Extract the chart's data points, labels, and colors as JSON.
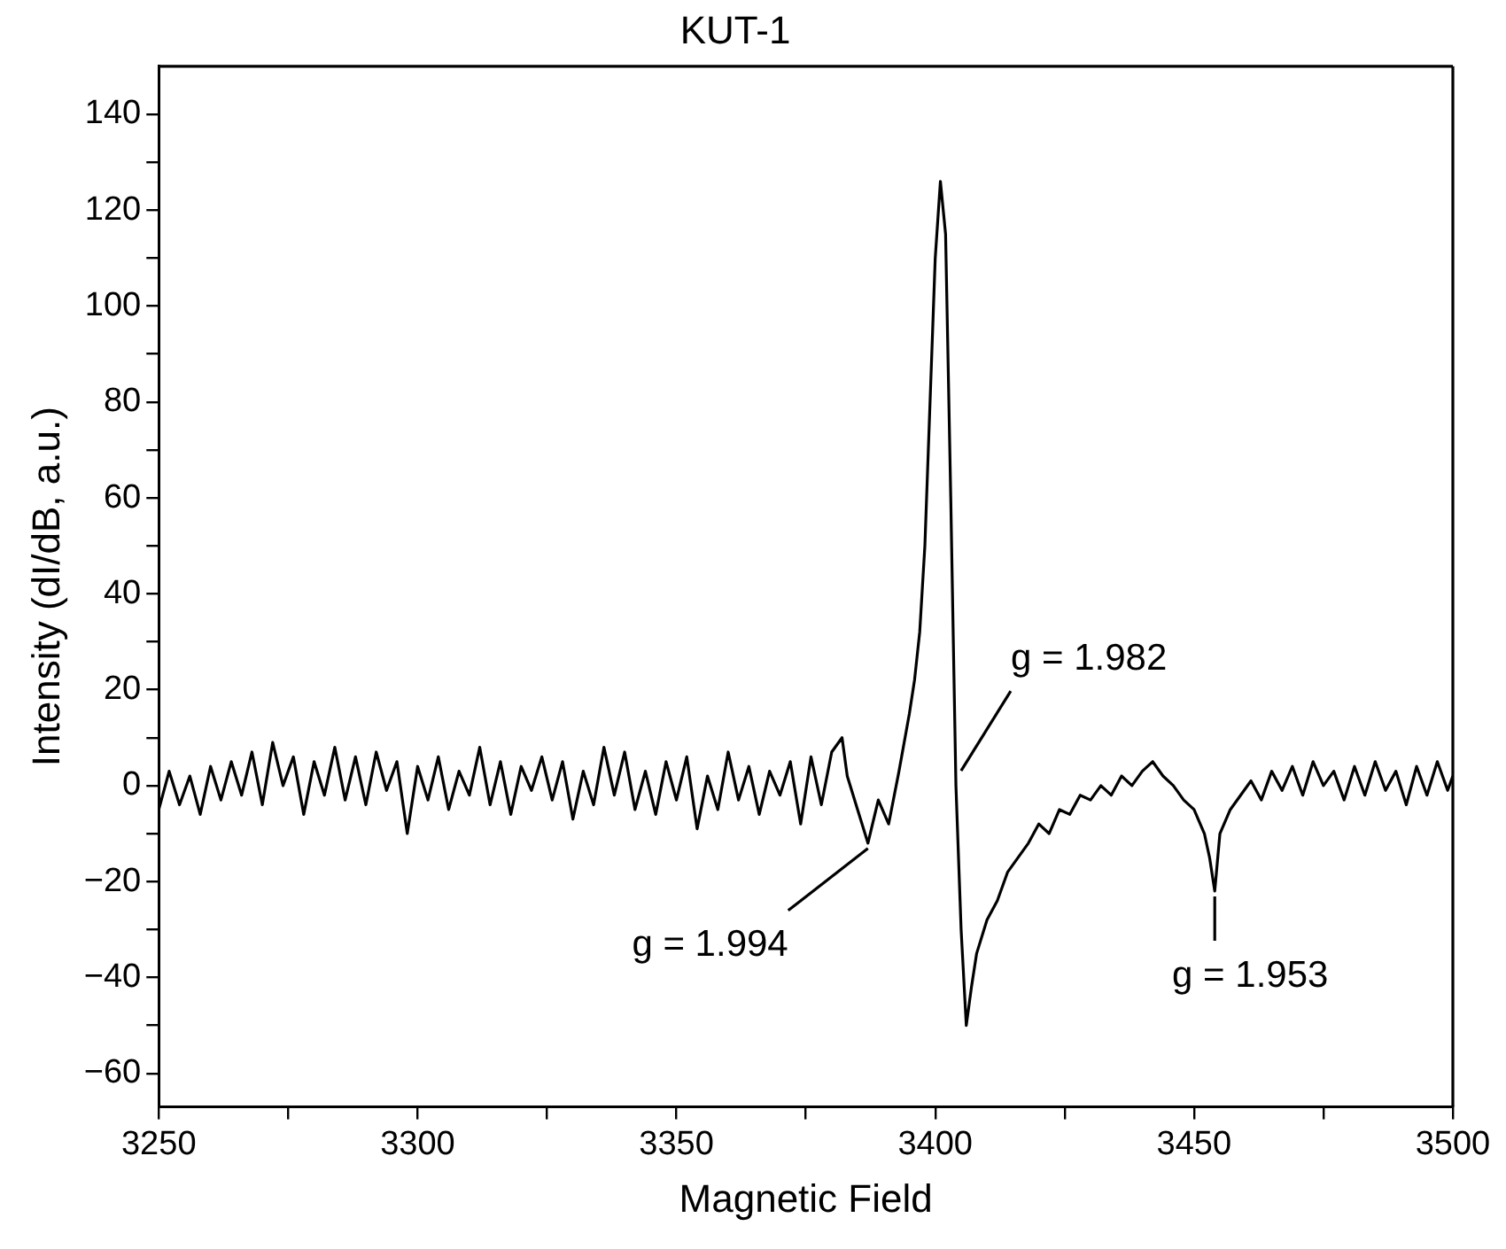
{
  "chart_data": {
    "type": "line",
    "title": "KUT-1",
    "xlabel": "Magnetic Field",
    "ylabel": "Intensity (dI/dB, a.u.)",
    "xlim": [
      3250,
      3500
    ],
    "xticks": [
      3250,
      {
        "value": 3275,
        "label": null
      },
      3300,
      {
        "value": 3325,
        "label": null
      },
      3350,
      {
        "value": 3375,
        "label": null
      },
      3400,
      {
        "value": 3425,
        "label": null
      },
      3450,
      {
        "value": 3475,
        "label": null
      },
      3500
    ],
    "ylim": [
      -67,
      150
    ],
    "yticks": [
      -60,
      {
        "value": -50,
        "label": null
      },
      -40,
      {
        "value": -30,
        "label": null
      },
      -20,
      {
        "value": -10,
        "label": null
      },
      0,
      {
        "value": 10,
        "label": null
      },
      20,
      {
        "value": 30,
        "label": null
      },
      40,
      {
        "value": 50,
        "label": null
      },
      60,
      {
        "value": 70,
        "label": null
      },
      80,
      {
        "value": 90,
        "label": null
      },
      100,
      {
        "value": 110,
        "label": null
      },
      120,
      {
        "value": 130,
        "label": null
      },
      140
    ],
    "grid": false,
    "legend": false,
    "marker": "none",
    "line_style": "solid",
    "series": [
      {
        "color": "#000000",
        "x": [
          3250,
          3252,
          3254,
          3256,
          3258,
          3260,
          3262,
          3264,
          3266,
          3268,
          3270,
          3272,
          3274,
          3276,
          3278,
          3280,
          3282,
          3284,
          3286,
          3288,
          3290,
          3292,
          3294,
          3296,
          3298,
          3300,
          3302,
          3304,
          3306,
          3308,
          3310,
          3312,
          3314,
          3316,
          3318,
          3320,
          3322,
          3324,
          3326,
          3328,
          3330,
          3332,
          3334,
          3336,
          3338,
          3340,
          3342,
          3344,
          3346,
          3348,
          3350,
          3352,
          3354,
          3356,
          3358,
          3360,
          3362,
          3364,
          3366,
          3368,
          3370,
          3372,
          3374,
          3376,
          3378,
          3380,
          3382,
          3383,
          3385,
          3387,
          3389,
          3391,
          3393,
          3395,
          3396,
          3397,
          3398,
          3399,
          3400,
          3401,
          3402,
          3403,
          3404,
          3405,
          3406,
          3407,
          3408,
          3410,
          3412,
          3414,
          3416,
          3418,
          3420,
          3422,
          3424,
          3426,
          3428,
          3430,
          3432,
          3434,
          3436,
          3438,
          3440,
          3442,
          3444,
          3446,
          3448,
          3450,
          3452,
          3453,
          3454,
          3455,
          3457,
          3459,
          3461,
          3463,
          3465,
          3467,
          3469,
          3471,
          3473,
          3475,
          3477,
          3479,
          3481,
          3483,
          3485,
          3487,
          3489,
          3491,
          3493,
          3495,
          3497,
          3499,
          3500
        ],
        "values": [
          -5,
          3,
          -4,
          2,
          -6,
          4,
          -3,
          5,
          -2,
          7,
          -4,
          9,
          0,
          6,
          -6,
          5,
          -2,
          8,
          -3,
          6,
          -4,
          7,
          -1,
          5,
          -10,
          4,
          -3,
          6,
          -5,
          3,
          -2,
          8,
          -4,
          5,
          -6,
          4,
          -1,
          6,
          -3,
          5,
          -7,
          3,
          -4,
          8,
          -2,
          7,
          -5,
          3,
          -6,
          5,
          -3,
          6,
          -9,
          2,
          -5,
          7,
          -3,
          4,
          -6,
          3,
          -2,
          5,
          -8,
          6,
          -4,
          7,
          10,
          2,
          -5,
          -12,
          -3,
          -8,
          3,
          15,
          22,
          32,
          50,
          80,
          110,
          126,
          115,
          60,
          0,
          -30,
          -50,
          -42,
          -35,
          -28,
          -24,
          -18,
          -15,
          -12,
          -8,
          -10,
          -5,
          -6,
          -2,
          -3,
          0,
          -2,
          2,
          0,
          3,
          5,
          2,
          0,
          -3,
          -5,
          -10,
          -15,
          -22,
          -10,
          -5,
          -2,
          1,
          -3,
          3,
          -1,
          4,
          -2,
          5,
          0,
          3,
          -3,
          4,
          -2,
          5,
          -1,
          3,
          -4,
          4,
          -2,
          5,
          -1,
          2
        ]
      }
    ],
    "annotations": [
      {
        "text": "g = 1.994",
        "x": 3387,
        "y": -12
      },
      {
        "text": "g = 1.982",
        "x": 3405,
        "y": 2
      },
      {
        "text": "g = 1.953",
        "x": 3454,
        "y": -22
      }
    ]
  }
}
